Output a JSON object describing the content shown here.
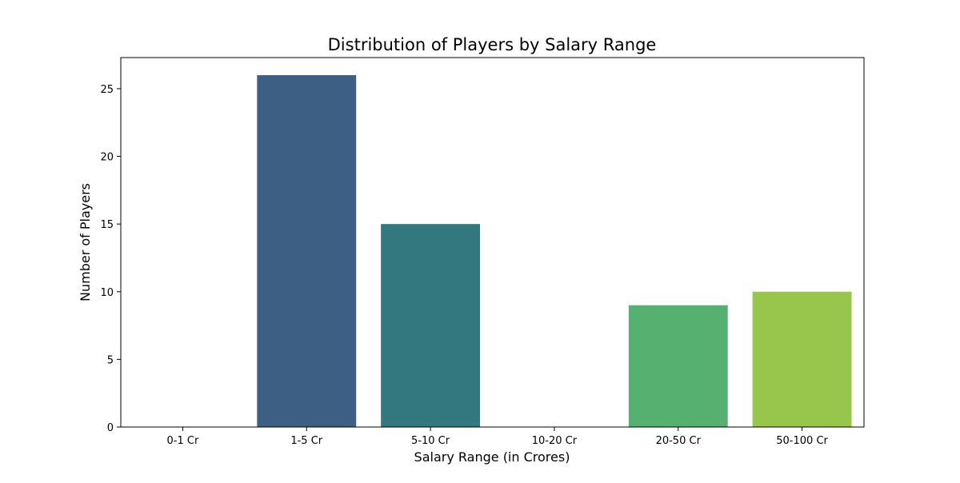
{
  "chart_data": {
    "type": "bar",
    "title": "Distribution of Players by Salary Range",
    "xlabel": "Salary Range (in Crores)",
    "ylabel": "Number of Players",
    "categories": [
      "0-1 Cr",
      "1-5 Cr",
      "5-10 Cr",
      "10-20 Cr",
      "20-50 Cr",
      "50-100 Cr"
    ],
    "values": [
      0,
      26,
      15,
      0,
      9,
      10
    ],
    "colors": [
      "#472d7b",
      "#3e5f84",
      "#33777f",
      "#21918c",
      "#56b170",
      "#98c54c"
    ],
    "ylim": [
      0,
      27.3
    ],
    "yticks": [
      0,
      5,
      10,
      15,
      20,
      25
    ],
    "grid": false,
    "legend": "none"
  }
}
